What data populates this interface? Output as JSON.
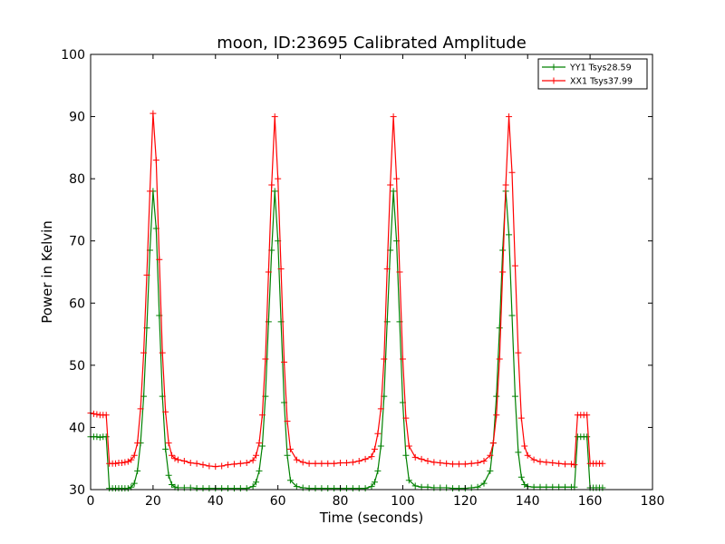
{
  "chart_data": {
    "type": "line",
    "title": "moon, ID:23695 Calibrated Amplitude",
    "xlabel": "Time (seconds)",
    "ylabel": "Power in Kelvin",
    "xlim": [
      0,
      180
    ],
    "ylim": [
      30,
      100
    ],
    "xticks": [
      0,
      20,
      40,
      60,
      80,
      100,
      120,
      140,
      160,
      180
    ],
    "yticks": [
      30,
      40,
      50,
      60,
      70,
      80,
      90,
      100
    ],
    "grid": false,
    "legend_position": "top-right",
    "series": [
      {
        "name": "YY1 Tsys28.59",
        "color": "#008000",
        "marker": "plus",
        "x": [
          0,
          1,
          2,
          3,
          4,
          5,
          6,
          7,
          8,
          9,
          10,
          11,
          12,
          13,
          14,
          15,
          16,
          17,
          18,
          19,
          20,
          21,
          22,
          23,
          24,
          25,
          26,
          27,
          28,
          30,
          32,
          34,
          36,
          38,
          40,
          42,
          44,
          46,
          48,
          50,
          52,
          53,
          54,
          55,
          56,
          57,
          58,
          59,
          60,
          61,
          62,
          63,
          64,
          66,
          68,
          70,
          72,
          74,
          76,
          78,
          80,
          82,
          84,
          86,
          88,
          90,
          91,
          92,
          93,
          94,
          95,
          96,
          97,
          98,
          99,
          100,
          101,
          102,
          104,
          106,
          108,
          110,
          112,
          114,
          116,
          118,
          120,
          122,
          124,
          126,
          128,
          129,
          130,
          131,
          132,
          133,
          134,
          135,
          136,
          137,
          138,
          139,
          140,
          142,
          144,
          146,
          148,
          150,
          152,
          154,
          155,
          156,
          157,
          158,
          159,
          160,
          161,
          162,
          163,
          164
        ],
        "values": [
          38.5,
          38.5,
          38.5,
          38.4,
          38.5,
          38.5,
          30.2,
          30.2,
          30.2,
          30.2,
          30.2,
          30.2,
          30.2,
          30.4,
          31.0,
          33.0,
          37.5,
          45.0,
          56.0,
          68.5,
          78.0,
          72.0,
          58.0,
          45.0,
          36.5,
          32.3,
          30.8,
          30.4,
          30.3,
          30.3,
          30.3,
          30.2,
          30.2,
          30.2,
          30.2,
          30.2,
          30.2,
          30.2,
          30.2,
          30.2,
          30.5,
          31.2,
          33.0,
          37.0,
          45.0,
          57.0,
          68.5,
          78.0,
          70.0,
          57.0,
          44.0,
          35.5,
          31.5,
          30.5,
          30.3,
          30.2,
          30.2,
          30.2,
          30.2,
          30.2,
          30.2,
          30.2,
          30.2,
          30.2,
          30.2,
          30.5,
          31.2,
          33.0,
          37.0,
          45.0,
          57.0,
          68.5,
          78.0,
          70.0,
          57.0,
          44.0,
          35.5,
          31.5,
          30.6,
          30.4,
          30.4,
          30.3,
          30.3,
          30.3,
          30.2,
          30.2,
          30.2,
          30.3,
          30.4,
          31.0,
          33.0,
          37.5,
          45.0,
          56.0,
          68.5,
          78.0,
          71.0,
          58.0,
          45.0,
          36.0,
          32.0,
          30.8,
          30.5,
          30.4,
          30.4,
          30.4,
          30.4,
          30.4,
          30.4,
          30.4,
          30.4,
          38.5,
          38.5,
          38.5,
          38.5,
          30.3,
          30.3,
          30.3,
          30.3,
          30.3
        ]
      },
      {
        "name": "XX1 Tsys37.99",
        "color": "#ff0000",
        "marker": "plus",
        "x": [
          0,
          1,
          2,
          3,
          4,
          5,
          6,
          7,
          8,
          9,
          10,
          11,
          12,
          13,
          14,
          15,
          16,
          17,
          18,
          19,
          20,
          21,
          22,
          23,
          24,
          25,
          26,
          27,
          28,
          30,
          32,
          34,
          36,
          38,
          40,
          42,
          44,
          46,
          48,
          50,
          52,
          53,
          54,
          55,
          56,
          57,
          58,
          59,
          60,
          61,
          62,
          63,
          64,
          66,
          68,
          70,
          72,
          74,
          76,
          78,
          80,
          82,
          84,
          86,
          88,
          90,
          91,
          92,
          93,
          94,
          95,
          96,
          97,
          98,
          99,
          100,
          101,
          102,
          104,
          106,
          108,
          110,
          112,
          114,
          116,
          118,
          120,
          122,
          124,
          126,
          128,
          129,
          130,
          131,
          132,
          133,
          134,
          135,
          136,
          137,
          138,
          139,
          140,
          142,
          144,
          146,
          148,
          150,
          152,
          154,
          155,
          156,
          157,
          158,
          159,
          160,
          161,
          162,
          163,
          164
        ],
        "values": [
          42.3,
          42.2,
          42.1,
          42.0,
          42.0,
          42.0,
          34.2,
          34.2,
          34.2,
          34.3,
          34.3,
          34.4,
          34.5,
          34.8,
          35.5,
          37.5,
          43.0,
          52.0,
          64.5,
          78.0,
          90.5,
          83.0,
          67.0,
          52.0,
          42.5,
          37.5,
          35.5,
          35.0,
          34.8,
          34.6,
          34.3,
          34.2,
          34.0,
          33.8,
          33.7,
          33.8,
          34.0,
          34.1,
          34.2,
          34.3,
          34.7,
          35.5,
          37.5,
          42.0,
          51.0,
          65.0,
          79.0,
          90.0,
          80.0,
          65.5,
          50.5,
          41.0,
          36.5,
          34.8,
          34.4,
          34.2,
          34.2,
          34.2,
          34.2,
          34.2,
          34.3,
          34.3,
          34.4,
          34.6,
          34.9,
          35.3,
          36.5,
          39.0,
          43.0,
          51.0,
          65.5,
          79.0,
          90.0,
          80.0,
          65.0,
          51.0,
          41.5,
          37.0,
          35.2,
          34.9,
          34.6,
          34.4,
          34.3,
          34.2,
          34.1,
          34.1,
          34.1,
          34.2,
          34.3,
          34.6,
          35.5,
          37.5,
          42.0,
          51.0,
          65.0,
          79.0,
          90.0,
          81.0,
          66.0,
          52.0,
          41.5,
          37.0,
          35.5,
          34.8,
          34.5,
          34.4,
          34.3,
          34.2,
          34.1,
          34.1,
          34.0,
          42.0,
          42.0,
          42.0,
          42.0,
          34.2,
          34.2,
          34.2,
          34.2,
          34.2
        ]
      }
    ]
  }
}
